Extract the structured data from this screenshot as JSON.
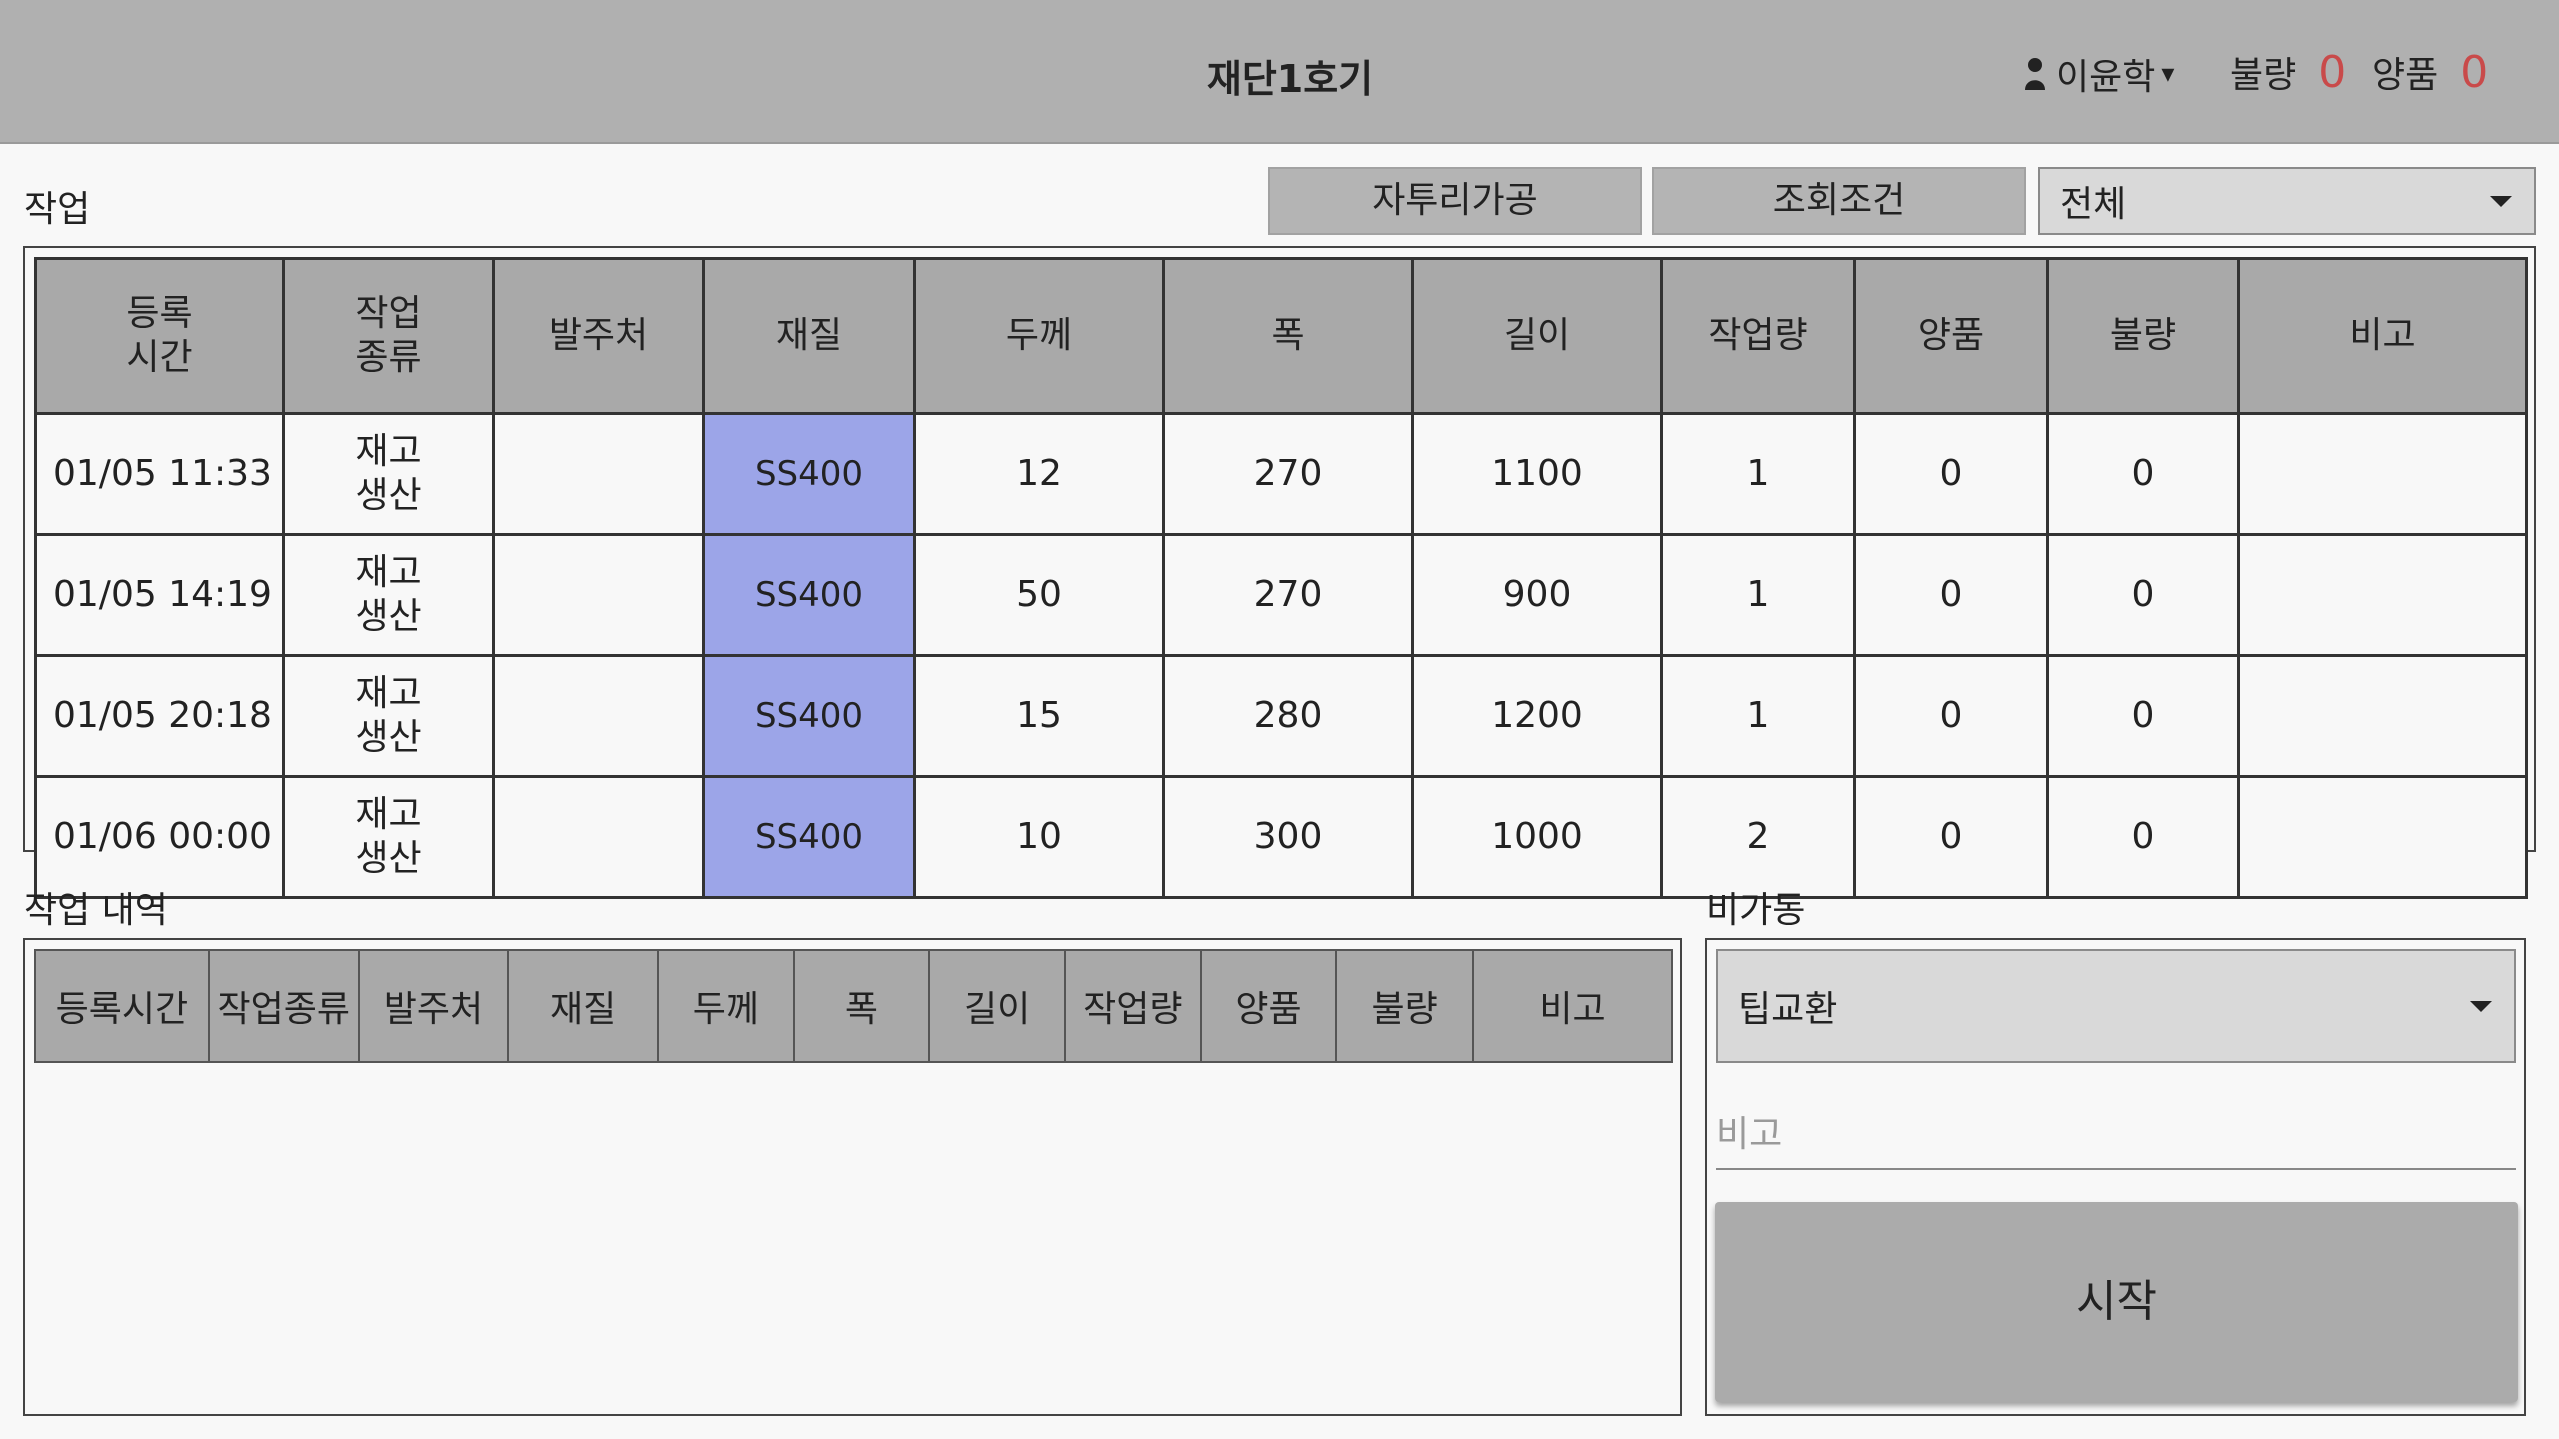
{
  "header": {
    "title": "재단1호기",
    "user_name": "이윤학",
    "user_caret": "▾",
    "bad_label": "불량",
    "bad_count": "0",
    "good_label": "양품",
    "good_count": "0"
  },
  "work": {
    "label": "작업",
    "btn_self_process": "자투리가공",
    "btn_search_condition": "조회조건",
    "filter_selected": "전체",
    "columns": [
      {
        "line1": "등록",
        "line2": "시간"
      },
      {
        "line1": "작업",
        "line2": "종류"
      },
      {
        "line1": "발주처",
        "line2": ""
      },
      {
        "line1": "재질",
        "line2": ""
      },
      {
        "line1": "두께",
        "line2": ""
      },
      {
        "line1": "폭",
        "line2": ""
      },
      {
        "line1": "길이",
        "line2": ""
      },
      {
        "line1": "작업량",
        "line2": ""
      },
      {
        "line1": "양품",
        "line2": ""
      },
      {
        "line1": "불량",
        "line2": ""
      },
      {
        "line1": "비고",
        "line2": ""
      }
    ],
    "rows": [
      {
        "time": "01/05  11:33",
        "type1": "재고",
        "type2": "생산",
        "client": "",
        "material": "SS400",
        "thickness": "12",
        "width": "270",
        "length": "1100",
        "qty": "1",
        "good": "0",
        "bad": "0",
        "note": ""
      },
      {
        "time": "01/05  14:19",
        "type1": "재고",
        "type2": "생산",
        "client": "",
        "material": "SS400",
        "thickness": "50",
        "width": "270",
        "length": "900",
        "qty": "1",
        "good": "0",
        "bad": "0",
        "note": ""
      },
      {
        "time": "01/05  20:18",
        "type1": "재고",
        "type2": "생산",
        "client": "",
        "material": "SS400",
        "thickness": "15",
        "width": "280",
        "length": "1200",
        "qty": "1",
        "good": "0",
        "bad": "0",
        "note": ""
      },
      {
        "time": "01/06  00:00",
        "type1": "재고",
        "type2": "생산",
        "client": "",
        "material": "SS400",
        "thickness": "10",
        "width": "300",
        "length": "1000",
        "qty": "2",
        "good": "0",
        "bad": "0",
        "note": ""
      }
    ]
  },
  "history": {
    "label": "작업 내역",
    "columns": [
      "등록시간",
      "작업종류",
      "발주처",
      "재질",
      "두께",
      "폭",
      "길이",
      "작업량",
      "양품",
      "불량",
      "비고"
    ]
  },
  "downtime": {
    "label": "비가동",
    "reason_selected": "팁교환",
    "note_placeholder": "비고",
    "start_label": "시작"
  },
  "colors": {
    "header_bg": "#b0b0b0",
    "material_cell": "#9ca5e8",
    "count_red": "#c94a4a"
  }
}
